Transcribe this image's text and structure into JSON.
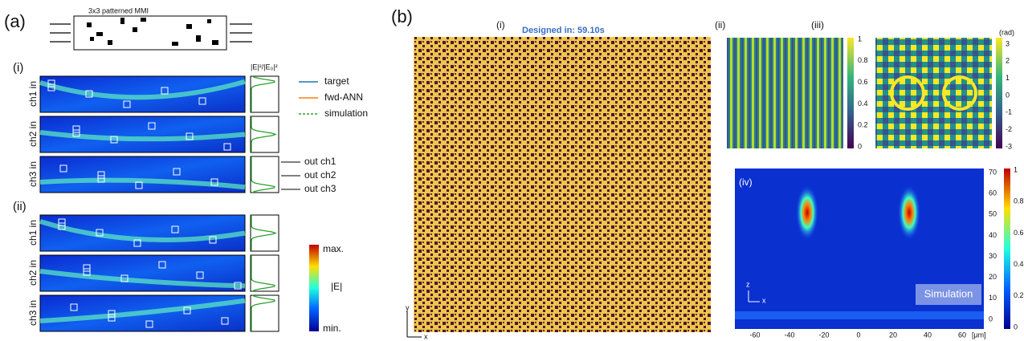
{
  "panel_a": {
    "label": "(a)",
    "schematic_title": "3x3 patterned MMI",
    "subpanels": [
      {
        "label": "(i)",
        "rows": [
          "ch1 in",
          "ch2 in",
          "ch3 in"
        ]
      },
      {
        "label": "(ii)",
        "rows": [
          "ch1 in",
          "ch2 in",
          "ch3 in"
        ]
      }
    ],
    "profile_axis_label": "|E|²/|E₀|²",
    "legend": [
      "target",
      "fwd-ANN",
      "simulation"
    ],
    "outputs": [
      "out ch1",
      "out ch2",
      "out ch3"
    ],
    "colorbar": {
      "max": "max.",
      "label": "|E|",
      "min": "min."
    }
  },
  "panel_b": {
    "label": "(b)",
    "design": {
      "label": "(i)",
      "note": "Designed in: 59.10s",
      "axis_y": "y",
      "axis_x": "x"
    },
    "amplitude": {
      "label": "(ii)",
      "ticks": [
        "1",
        "0.8",
        "0.6",
        "0.4",
        "0.2",
        "0"
      ]
    },
    "phase": {
      "label": "(iii)",
      "unit": "(rad)",
      "ticks": [
        "3",
        "2",
        "1",
        "0",
        "-1",
        "-2",
        "-3"
      ]
    },
    "simulation": {
      "label": "(iv)",
      "badge": "Simulation",
      "axis_z": "z",
      "axis_x": "x",
      "yticks": [
        "70",
        "60",
        "50",
        "40",
        "30",
        "20",
        "10",
        "0"
      ],
      "xticks": [
        "-60",
        "-40",
        "-20",
        "0",
        "20",
        "40",
        "60"
      ],
      "x_unit": "[μm]",
      "colorbar_ticks": [
        "1",
        "0.8",
        "0.6",
        "0.4",
        "0.2",
        "0"
      ]
    }
  }
}
